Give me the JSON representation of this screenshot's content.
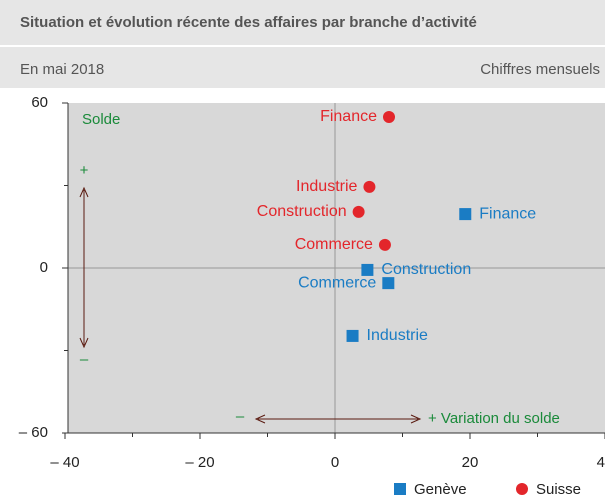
{
  "chart_data": {
    "type": "scatter",
    "title": "Situation et évolution récente des affaires par branche d’activité",
    "subtitle_left": "En mai 2018",
    "subtitle_right": "Chiffres mensuels",
    "xlim": [
      -40,
      40
    ],
    "ylim": [
      -60,
      60
    ],
    "xticks": [
      {
        "value": -40,
        "label": "– 40"
      },
      {
        "value": -20,
        "label": "– 20"
      },
      0,
      20,
      40
    ],
    "yticks": [
      60,
      0,
      {
        "value": -60,
        "label": "– 60"
      }
    ],
    "xminorticks": [
      -30,
      -10,
      10,
      30
    ],
    "yminorticks": [
      30,
      -30
    ],
    "annotations": {
      "y_label": "Solde",
      "y_plus": "+",
      "y_minus": "–",
      "x_minus": "–",
      "x_label": "+ Variation du solde"
    },
    "series": [
      {
        "name": "Genève",
        "color": "#1a7cc4",
        "marker": "square",
        "labels": [
          "Finance",
          "Construction",
          "Commerce",
          "Industrie"
        ],
        "x": [
          19.3,
          4.8,
          7.9,
          2.6
        ],
        "values": [
          19.6,
          -0.7,
          -5.5,
          -24.7
        ]
      },
      {
        "name": "Suisse",
        "color": "#e3262b",
        "marker": "circle",
        "labels": [
          "Finance",
          "Industrie",
          "Construction",
          "Commerce"
        ],
        "x": [
          8,
          5.1,
          3.5,
          7.4
        ],
        "values": [
          54.9,
          29.5,
          20.4,
          8.4
        ]
      }
    ]
  }
}
